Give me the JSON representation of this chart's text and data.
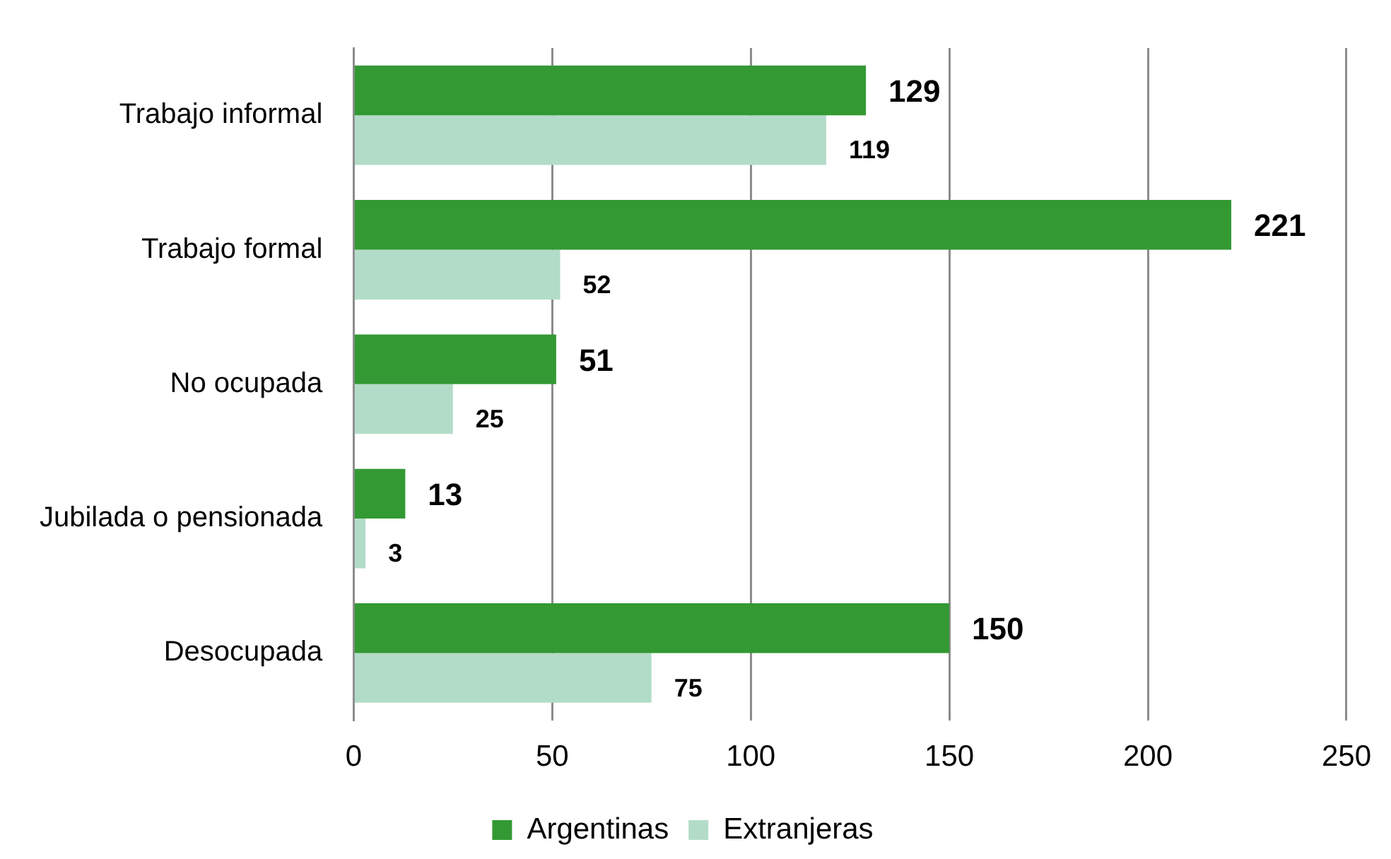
{
  "chart_data": {
    "type": "bar",
    "orientation": "horizontal",
    "categories": [
      "Trabajo informal",
      "Trabajo formal",
      "No ocupada",
      "Jubilada o pensionada",
      "Desocupada"
    ],
    "series": [
      {
        "name": "Argentinas",
        "color": "#339933",
        "values": [
          129,
          221,
          51,
          13,
          150
        ]
      },
      {
        "name": "Extranjeras",
        "color": "#b3dcc8",
        "values": [
          119,
          52,
          25,
          3,
          75
        ]
      }
    ],
    "xlim": [
      0,
      250
    ],
    "xticks": [
      0,
      50,
      100,
      150,
      200,
      250
    ],
    "grid": "x",
    "legend": "bottom",
    "data_labels": true
  }
}
